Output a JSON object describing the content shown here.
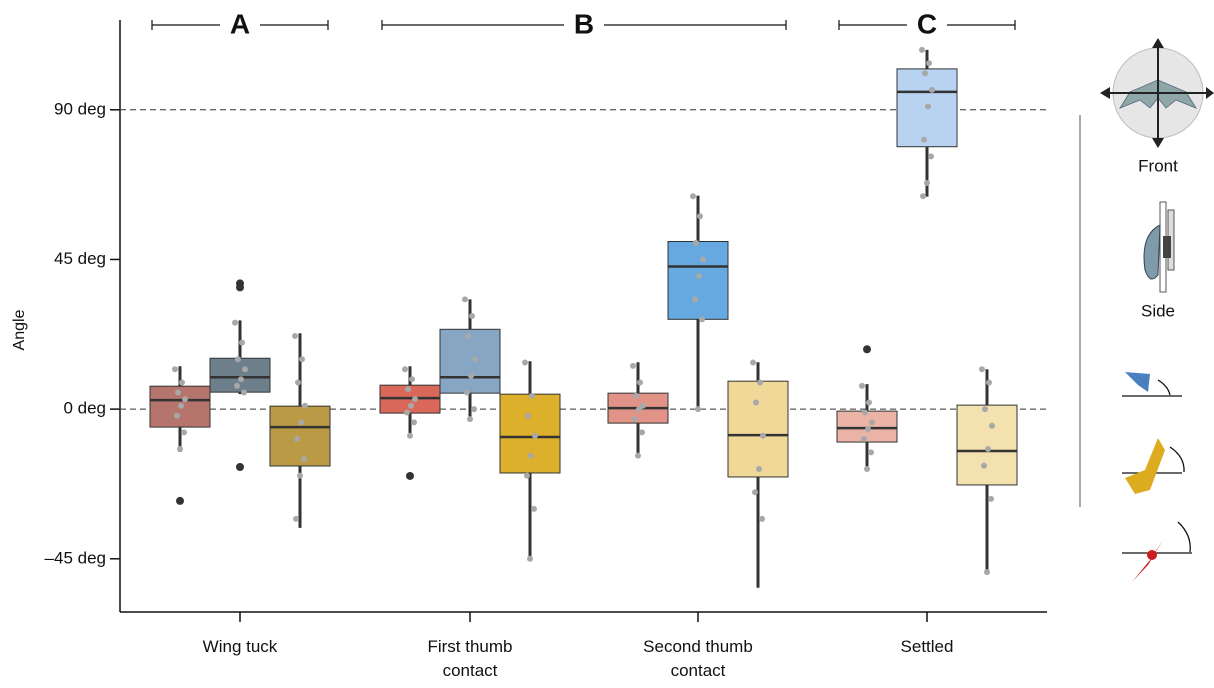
{
  "chart_data": {
    "type": "box",
    "ylabel": "Angle",
    "categories": [
      "Wing tuck",
      "First thumb\ncontact",
      "Second thumb\ncontact",
      "Settled"
    ],
    "ylim": [
      -61,
      117
    ],
    "yticks": [
      {
        "value": -45,
        "label": "–45 deg"
      },
      {
        "value": 0,
        "label": "0 deg"
      },
      {
        "value": 45,
        "label": "45 deg"
      },
      {
        "value": 90,
        "label": "90 deg"
      }
    ],
    "reference_lines": [
      0,
      90
    ],
    "group_labels": [
      "A",
      "B",
      "C"
    ],
    "side_labels": [
      "Front",
      "Side"
    ],
    "series": [
      {
        "colors": [
          "#b5756d",
          "#d9685a",
          "#e09386",
          "#ebb3a6"
        ],
        "q1": [
          -5.4,
          -1.2,
          -4.2,
          -9.9
        ],
        "median": [
          2.7,
          3.3,
          0.3,
          -5.7
        ],
        "q3": [
          6.9,
          7.2,
          4.8,
          -0.6
        ],
        "whislo": [
          -12.9,
          -8.4,
          -14.7,
          -18.3
        ],
        "whishi": [
          12.9,
          12.9,
          14.1,
          7.5
        ],
        "outliers": [
          [
            -27.6
          ],
          [
            -20.1
          ],
          [],
          [
            18.0
          ]
        ],
        "points": [
          [
            12,
            8,
            5,
            3,
            1,
            -2,
            -7,
            -12
          ],
          [
            12,
            9,
            6,
            3,
            1,
            -1,
            -4,
            -8
          ],
          [
            13,
            8,
            4,
            1,
            0,
            -3,
            -7,
            -14
          ],
          [
            7,
            2,
            -1,
            -4,
            -6,
            -9,
            -13,
            -18
          ]
        ]
      },
      {
        "colors": [
          "#6e7f8c",
          "#86a6c4",
          "#66a9e0",
          "#b8d3f2"
        ],
        "q1": [
          5.1,
          4.8,
          27.0,
          78.9
        ],
        "median": [
          9.6,
          9.6,
          42.9,
          95.4
        ],
        "q3": [
          15.3,
          24.0,
          50.4,
          102.3
        ],
        "whislo": [
          4.5,
          -3.6,
          0,
          63.9
        ],
        "whishi": [
          26.7,
          33.0,
          64.2,
          108
        ],
        "outliers": [
          [
            37.8,
            36.6,
            -17.4
          ],
          [],
          [],
          []
        ],
        "points": [
          [
            26,
            20,
            15,
            12,
            9,
            7,
            5
          ],
          [
            33,
            28,
            22,
            15,
            10,
            5,
            0,
            -3
          ],
          [
            64,
            58,
            50,
            45,
            40,
            33,
            27,
            0
          ],
          [
            108,
            104,
            101,
            96,
            91,
            81,
            76,
            68,
            64
          ]
        ]
      },
      {
        "colors": [
          "#bb9a45",
          "#dcb02a",
          "#f0d898",
          "#f3e1b0"
        ],
        "q1": [
          -17.1,
          -19.2,
          -20.4,
          -22.8
        ],
        "median": [
          -5.4,
          -8.4,
          -7.8,
          -12.6
        ],
        "q3": [
          0.9,
          4.5,
          8.4,
          1.2
        ],
        "whislo": [
          -35.7,
          -45.0,
          -53.7,
          -49.2
        ],
        "whishi": [
          22.8,
          14.4,
          14.1,
          12.0
        ],
        "outliers": [
          [],
          [],
          [],
          []
        ],
        "points": [
          [
            22,
            15,
            8,
            1,
            -4,
            -9,
            -15,
            -20,
            -33
          ],
          [
            14,
            4,
            -2,
            -8,
            -14,
            -20,
            -30,
            -45
          ],
          [
            14,
            8,
            2,
            -8,
            -18,
            -25,
            -33
          ],
          [
            12,
            8,
            0,
            -5,
            -12,
            -17,
            -27,
            -49
          ]
        ]
      }
    ]
  }
}
